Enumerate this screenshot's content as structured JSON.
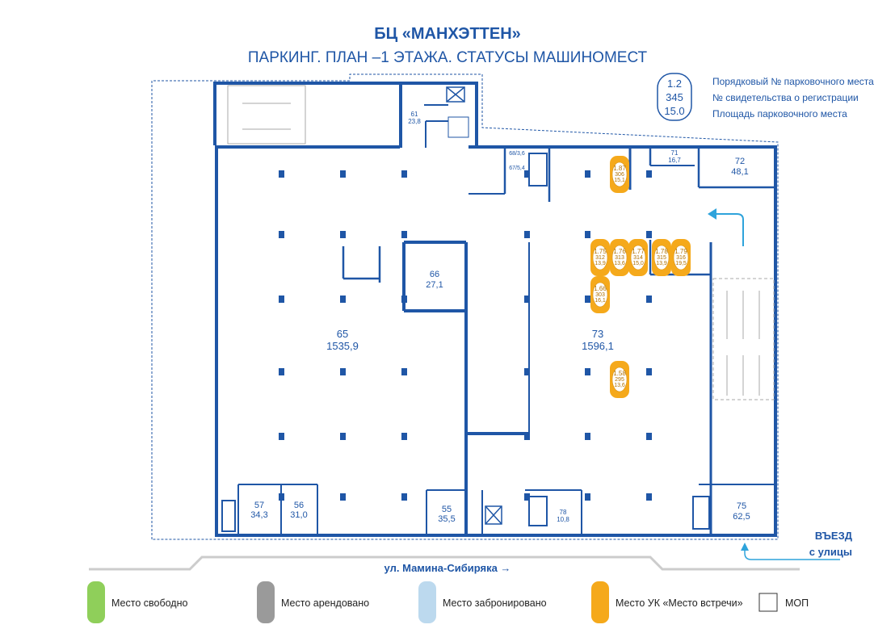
{
  "header": {
    "title": "БЦ «МАНХЭТТЕН»",
    "subtitle": "ПАРКИНГ. ПЛАН –1 ЭТАЖА. СТАТУСЫ МАШИНОМЕСТ"
  },
  "key": {
    "sample": [
      "1.2",
      "345",
      "15.0"
    ],
    "descriptions": [
      "Порядковый № парковочного места",
      "№ свидетельства о регистрации",
      "Площадь парковочного места"
    ]
  },
  "rooms": [
    {
      "num": "61",
      "area": "23,8"
    },
    {
      "num": "68/3,6",
      "area": ""
    },
    {
      "num": "67/5,4",
      "area": ""
    },
    {
      "num": "71",
      "area": "16,7"
    },
    {
      "num": "72",
      "area": "48,1"
    },
    {
      "num": "66",
      "area": "27,1"
    },
    {
      "num": "65",
      "area": "1535,9"
    },
    {
      "num": "73",
      "area": "1596,1"
    },
    {
      "num": "57",
      "area": "34,3"
    },
    {
      "num": "56",
      "area": "31,0"
    },
    {
      "num": "55",
      "area": "35,5"
    },
    {
      "num": "78",
      "area": "10,8"
    },
    {
      "num": "75",
      "area": "62,5"
    }
  ],
  "spots": [
    {
      "n": "1.87",
      "cert": "306",
      "area": "15,1",
      "status": "uk"
    },
    {
      "n": "1.75",
      "cert": "312",
      "area": "13,9",
      "status": "uk"
    },
    {
      "n": "1.76",
      "cert": "313",
      "area": "13,6",
      "status": "uk"
    },
    {
      "n": "1.77",
      "cert": "314",
      "area": "15,0",
      "status": "uk"
    },
    {
      "n": "1.78",
      "cert": "315",
      "area": "13,9",
      "status": "uk"
    },
    {
      "n": "1.79",
      "cert": "316",
      "area": "19,5",
      "status": "uk"
    },
    {
      "n": "1.66",
      "cert": "303",
      "area": "16,1",
      "status": "uk"
    },
    {
      "n": "1.58",
      "cert": "295",
      "area": "13,6",
      "status": "uk"
    }
  ],
  "entrance": {
    "line1": "ВЪЕЗД",
    "line2": "с улицы"
  },
  "street": "ул. Мамина-Сибиряка →",
  "legend": [
    {
      "label": "Место свободно",
      "color": "#8fcf5a"
    },
    {
      "label": "Место арендовано",
      "color": "#9a9a9a"
    },
    {
      "label": "Место забронировано",
      "color": "#bcd9ee"
    },
    {
      "label": "Место УК «Место встречи»",
      "color": "#f5a91b"
    },
    {
      "label": "МОП",
      "color": "#ffffff"
    }
  ],
  "colors": {
    "wall": "#1f56a6",
    "arrow": "#2ea3db",
    "uk": "#f5a91b"
  }
}
